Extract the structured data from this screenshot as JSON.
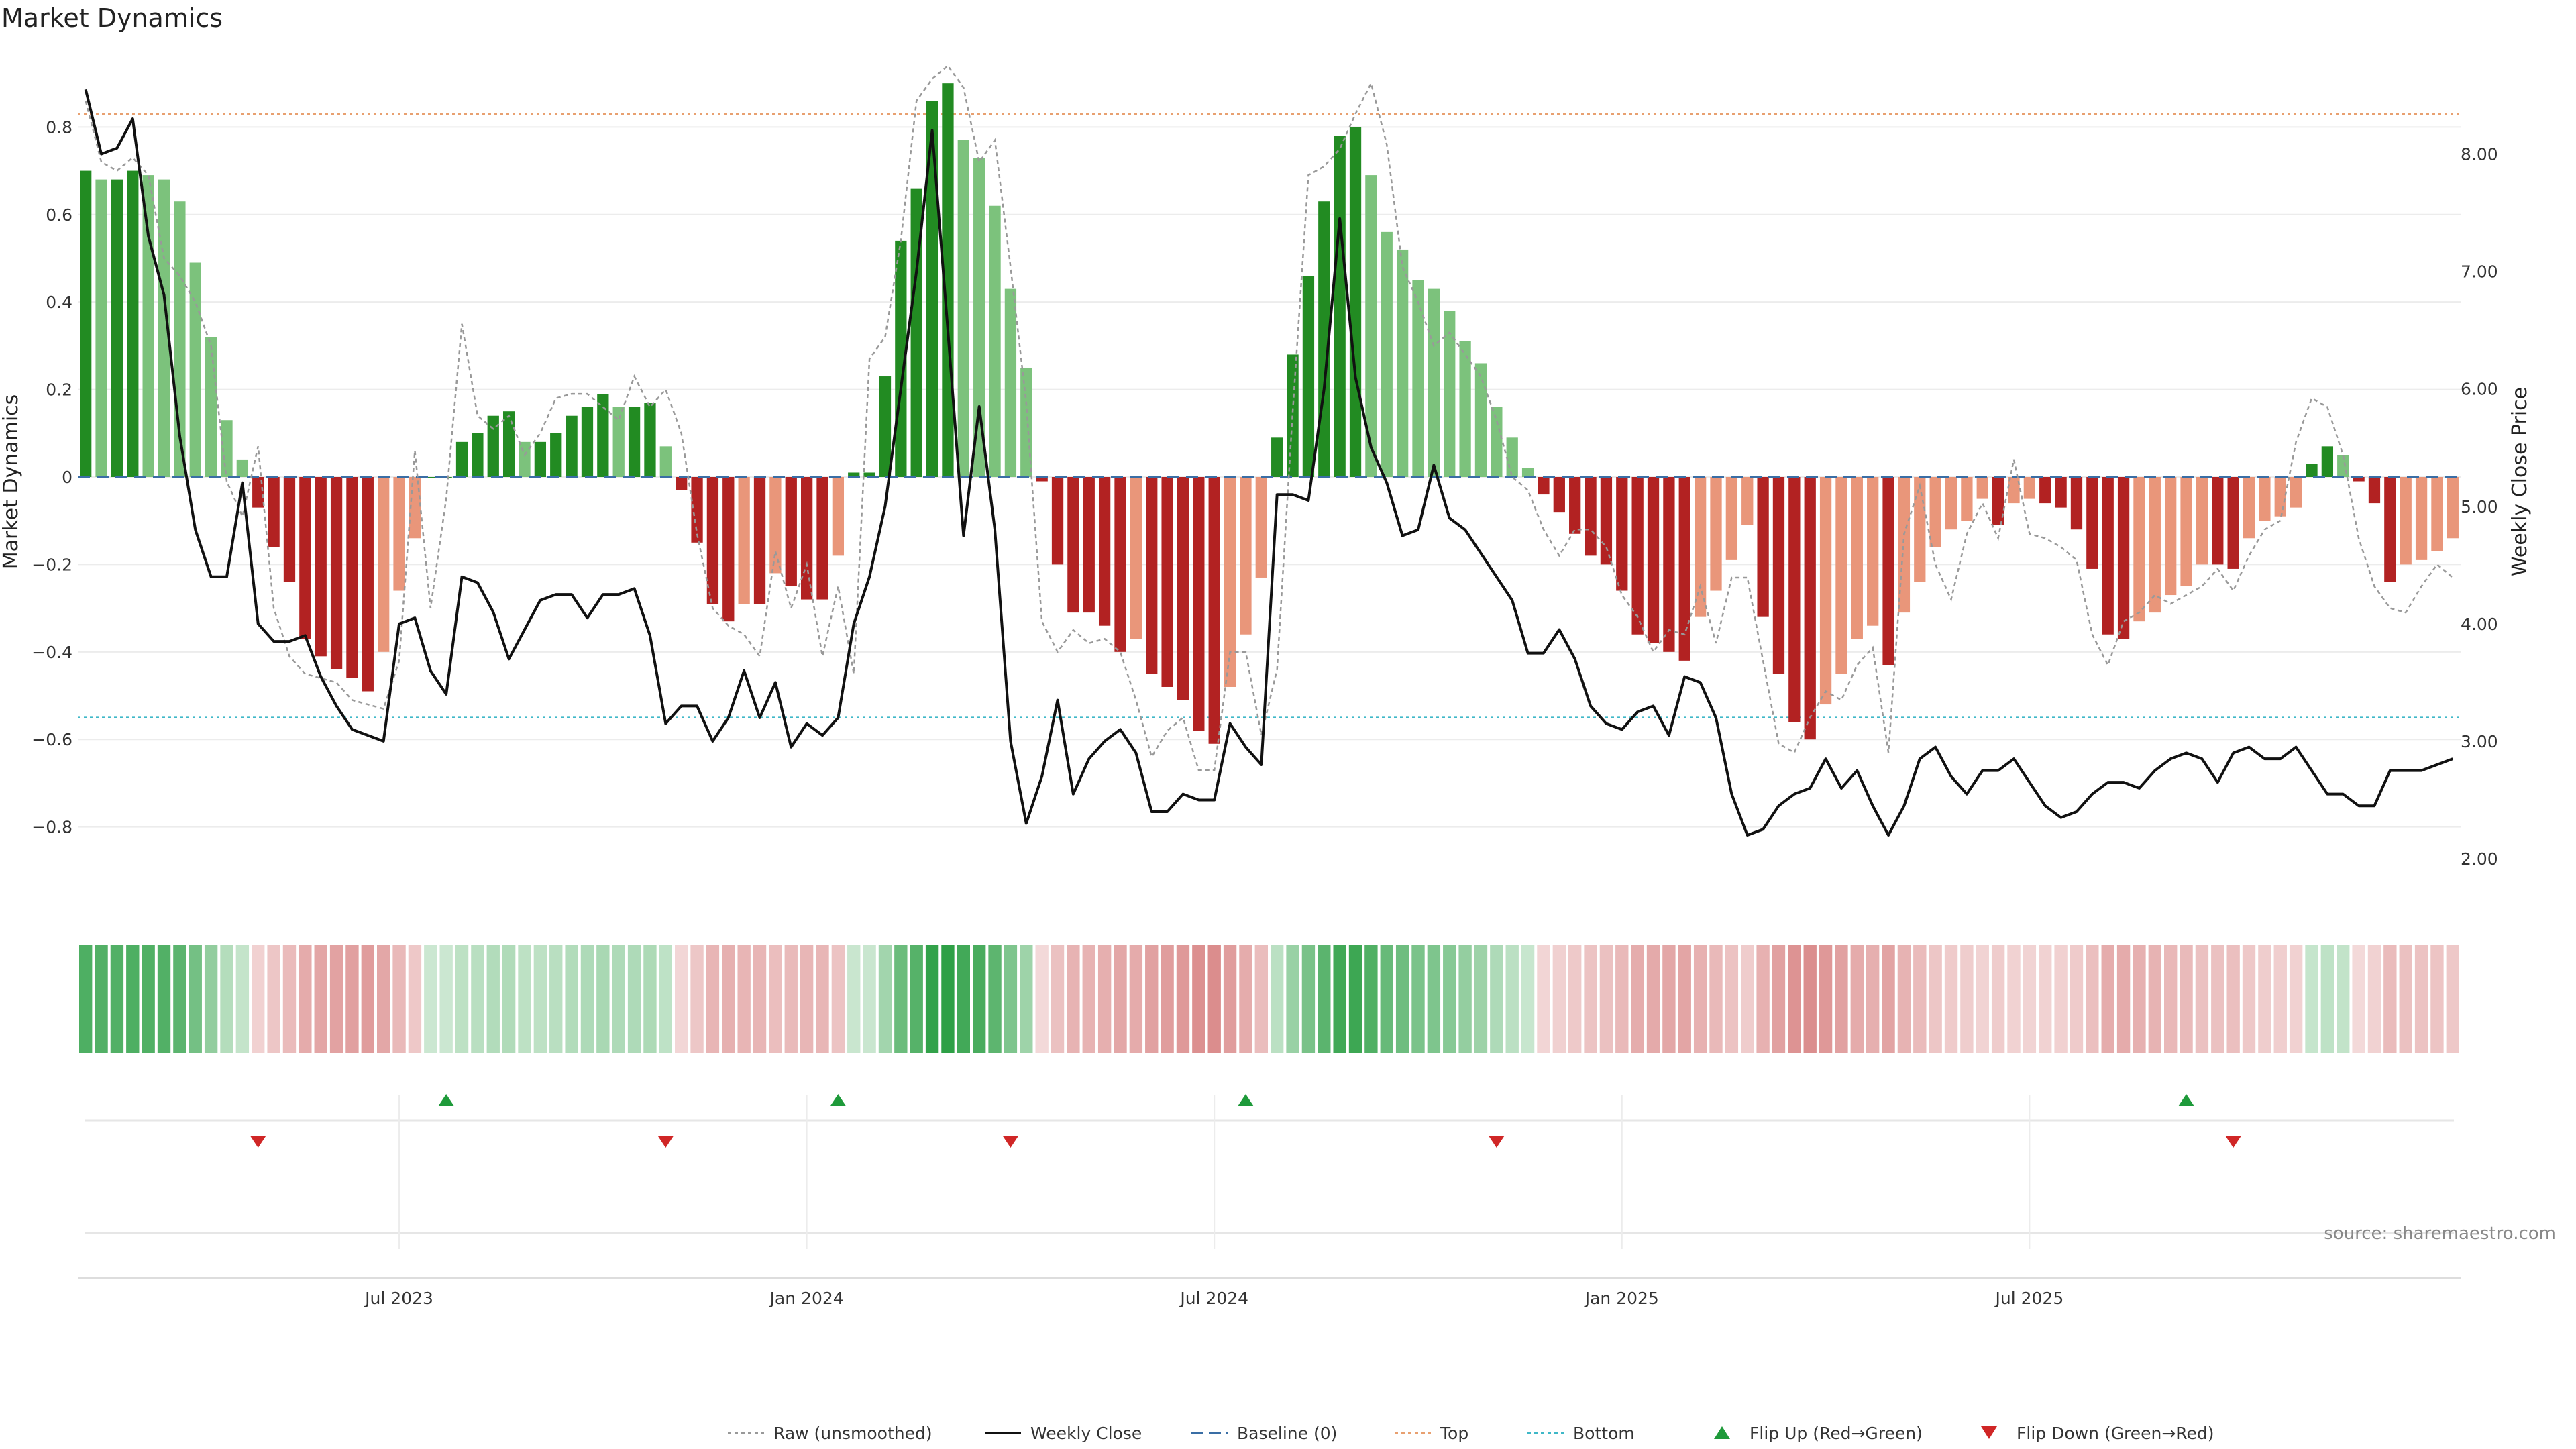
{
  "chart_data": {
    "type": "bar",
    "title": "Market Dynamics",
    "ylabel": "Market Dynamics",
    "y2label": "Weekly Close Price",
    "ylim": [
      -0.98,
      0.98
    ],
    "y2lim": [
      1.6,
      8.9
    ],
    "yticks": [
      0.8,
      0.6,
      0.4,
      0.2,
      0,
      -0.2,
      -0.4,
      -0.6,
      -0.8
    ],
    "yticklabels": [
      "0.8",
      "0.6",
      "0.4",
      "0.2",
      "0",
      "−0.2",
      "−0.4",
      "−0.6",
      "−0.8"
    ],
    "y2ticks": [
      8.0,
      7.0,
      6.0,
      5.0,
      4.0,
      3.0,
      2.0
    ],
    "y2ticklabels": [
      "8.00",
      "7.00",
      "6.00",
      "5.00",
      "4.00",
      "3.00",
      "2.00"
    ],
    "top_level": 0.83,
    "bottom_level": -0.55,
    "baseline": 0,
    "xticks": [
      {
        "label": "Jul 2023",
        "index": 20
      },
      {
        "label": "Jan 2024",
        "index": 46
      },
      {
        "label": "Jul 2024",
        "index": 72
      },
      {
        "label": "Jan 2025",
        "index": 98
      },
      {
        "label": "Jul 2025",
        "index": 124
      }
    ],
    "series": [
      {
        "name": "Market Dynamics",
        "values": [
          0.7,
          0.68,
          0.68,
          0.7,
          0.69,
          0.68,
          0.63,
          0.49,
          0.32,
          0.13,
          0.04,
          -0.07,
          -0.16,
          -0.24,
          -0.37,
          -0.41,
          -0.44,
          -0.46,
          -0.49,
          -0.4,
          -0.26,
          -0.14,
          0.0,
          0.0,
          0.08,
          0.1,
          0.14,
          0.15,
          0.08,
          0.08,
          0.1,
          0.14,
          0.16,
          0.19,
          0.16,
          0.16,
          0.17,
          0.07,
          -0.03,
          -0.15,
          -0.29,
          -0.33,
          -0.29,
          -0.29,
          -0.22,
          -0.25,
          -0.28,
          -0.28,
          -0.18,
          0.01,
          0.01,
          0.23,
          0.54,
          0.66,
          0.86,
          0.9,
          0.77,
          0.73,
          0.62,
          0.43,
          0.25,
          -0.01,
          -0.2,
          -0.31,
          -0.31,
          -0.34,
          -0.4,
          -0.37,
          -0.45,
          -0.48,
          -0.51,
          -0.58,
          -0.61,
          -0.48,
          -0.36,
          -0.23,
          0.09,
          0.28,
          0.46,
          0.63,
          0.78,
          0.8,
          0.69,
          0.56,
          0.52,
          0.45,
          0.43,
          0.38,
          0.31,
          0.26,
          0.16,
          0.09,
          0.02,
          -0.04,
          -0.08,
          -0.13,
          -0.18,
          -0.2,
          -0.26,
          -0.36,
          -0.38,
          -0.4,
          -0.42,
          -0.32,
          -0.26,
          -0.19,
          -0.11,
          -0.32,
          -0.45,
          -0.56,
          -0.6,
          -0.52,
          -0.45,
          -0.37,
          -0.34,
          -0.43,
          -0.31,
          -0.24,
          -0.16,
          -0.12,
          -0.1,
          -0.05,
          -0.11,
          -0.06,
          -0.05,
          -0.06,
          -0.07,
          -0.12,
          -0.21,
          -0.36,
          -0.37,
          -0.33,
          -0.31,
          -0.27,
          -0.25,
          -0.2,
          -0.2,
          -0.21,
          -0.14,
          -0.1,
          -0.09,
          -0.07,
          0.03,
          0.07,
          0.05,
          -0.01,
          -0.06,
          -0.24,
          -0.2,
          -0.19,
          -0.17,
          -0.14
        ]
      },
      {
        "name": "Raw (unsmoothed)",
        "values": [
          0.86,
          0.72,
          0.7,
          0.73,
          0.69,
          0.5,
          0.46,
          0.4,
          0.3,
          -0.01,
          -0.09,
          0.07,
          -0.3,
          -0.41,
          -0.45,
          -0.46,
          -0.47,
          -0.51,
          -0.52,
          -0.53,
          -0.42,
          0.06,
          -0.3,
          -0.05,
          0.35,
          0.14,
          0.11,
          0.14,
          0.05,
          0.1,
          0.18,
          0.19,
          0.19,
          0.16,
          0.13,
          0.23,
          0.16,
          0.2,
          0.1,
          -0.13,
          -0.3,
          -0.34,
          -0.36,
          -0.41,
          -0.17,
          -0.3,
          -0.2,
          -0.41,
          -0.25,
          -0.45,
          0.27,
          0.32,
          0.54,
          0.86,
          0.91,
          0.94,
          0.89,
          0.72,
          0.77,
          0.48,
          0.17,
          -0.33,
          -0.4,
          -0.35,
          -0.38,
          -0.37,
          -0.4,
          -0.51,
          -0.64,
          -0.58,
          -0.55,
          -0.67,
          -0.67,
          -0.4,
          -0.4,
          -0.59,
          -0.44,
          0.15,
          0.69,
          0.71,
          0.75,
          0.83,
          0.9,
          0.76,
          0.48,
          0.4,
          0.3,
          0.33,
          0.28,
          0.23,
          0.13,
          0.0,
          -0.03,
          -0.12,
          -0.18,
          -0.12,
          -0.12,
          -0.16,
          -0.27,
          -0.32,
          -0.4,
          -0.35,
          -0.36,
          -0.25,
          -0.38,
          -0.23,
          -0.23,
          -0.42,
          -0.61,
          -0.63,
          -0.55,
          -0.49,
          -0.51,
          -0.43,
          -0.39,
          -0.63,
          -0.13,
          -0.02,
          -0.2,
          -0.28,
          -0.13,
          -0.06,
          -0.14,
          0.04,
          -0.13,
          -0.14,
          -0.16,
          -0.19,
          -0.36,
          -0.43,
          -0.33,
          -0.31,
          -0.27,
          -0.29,
          -0.27,
          -0.25,
          -0.21,
          -0.26,
          -0.18,
          -0.12,
          -0.1,
          0.08,
          0.18,
          0.16,
          0.05,
          -0.14,
          -0.25,
          -0.3,
          -0.31,
          -0.25,
          -0.2,
          -0.23
        ]
      },
      {
        "name": "Weekly Close",
        "axis": "right",
        "values": [
          8.55,
          8.0,
          8.05,
          8.3,
          7.3,
          6.8,
          5.6,
          4.8,
          4.4,
          4.4,
          5.2,
          4.0,
          3.85,
          3.85,
          3.9,
          3.55,
          3.3,
          3.1,
          3.05,
          3.0,
          4.0,
          4.05,
          3.6,
          3.4,
          4.4,
          4.35,
          4.1,
          3.7,
          3.95,
          4.2,
          4.25,
          4.25,
          4.05,
          4.25,
          4.25,
          4.3,
          3.9,
          3.15,
          3.3,
          3.3,
          3.0,
          3.2,
          3.6,
          3.2,
          3.5,
          2.95,
          3.15,
          3.05,
          3.2,
          4.0,
          4.4,
          5.0,
          6.0,
          7.0,
          8.2,
          6.5,
          4.75,
          5.85,
          4.8,
          3.0,
          2.3,
          2.7,
          3.35,
          2.55,
          2.85,
          3.0,
          3.1,
          2.9,
          2.4,
          2.4,
          2.55,
          2.5,
          2.5,
          3.15,
          2.95,
          2.8,
          5.1,
          5.1,
          5.05,
          6.0,
          7.45,
          6.1,
          5.5,
          5.2,
          4.75,
          4.8,
          5.35,
          4.9,
          4.8,
          4.6,
          4.4,
          4.2,
          3.75,
          3.75,
          3.95,
          3.7,
          3.3,
          3.15,
          3.1,
          3.25,
          3.3,
          3.05,
          3.55,
          3.5,
          3.2,
          2.55,
          2.2,
          2.25,
          2.45,
          2.55,
          2.6,
          2.85,
          2.6,
          2.75,
          2.45,
          2.2,
          2.45,
          2.85,
          2.95,
          2.7,
          2.55,
          2.75,
          2.75,
          2.85,
          2.65,
          2.45,
          2.35,
          2.4,
          2.55,
          2.65,
          2.65,
          2.6,
          2.75,
          2.85,
          2.9,
          2.85,
          2.65,
          2.9,
          2.95,
          2.85,
          2.85,
          2.95,
          2.75,
          2.55,
          2.55,
          2.45,
          2.45,
          2.75,
          2.75,
          2.75,
          2.8,
          2.85
        ]
      }
    ],
    "flips": [
      {
        "type": "up",
        "index": 23
      },
      {
        "type": "down",
        "index": 11
      },
      {
        "type": "down",
        "index": 37
      },
      {
        "type": "up",
        "index": 48
      },
      {
        "type": "down",
        "index": 59
      },
      {
        "type": "up",
        "index": 74
      },
      {
        "type": "down",
        "index": 90
      },
      {
        "type": "up",
        "index": 134
      },
      {
        "type": "down",
        "index": 137
      }
    ],
    "legend": [
      {
        "label": "Raw (unsmoothed)",
        "kind": "dotted",
        "color": "#999999"
      },
      {
        "label": "Weekly Close",
        "kind": "solid",
        "color": "#111111"
      },
      {
        "label": "Baseline (0)",
        "kind": "dashed",
        "color": "#3a6ea5"
      },
      {
        "label": "Top",
        "kind": "dotted",
        "color": "#e8a070"
      },
      {
        "label": "Bottom",
        "kind": "dotted",
        "color": "#3fb8c8"
      },
      {
        "label": "Flip Up (Red→Green)",
        "kind": "tri-up",
        "color": "#1e9a3a"
      },
      {
        "label": "Flip Down (Green→Red)",
        "kind": "tri-down",
        "color": "#d02626"
      }
    ],
    "legend_position": "bottom-center",
    "source": "source: sharemaestro.com",
    "colors": {
      "strong_green": "#228b22",
      "light_green": "#7cc27c",
      "strong_red": "#b22222",
      "light_red": "#e9967a",
      "top": "#e8a070",
      "bottom": "#3fb8c8",
      "baseline": "#3a6ea5",
      "close": "#111111",
      "raw": "#999999"
    }
  }
}
